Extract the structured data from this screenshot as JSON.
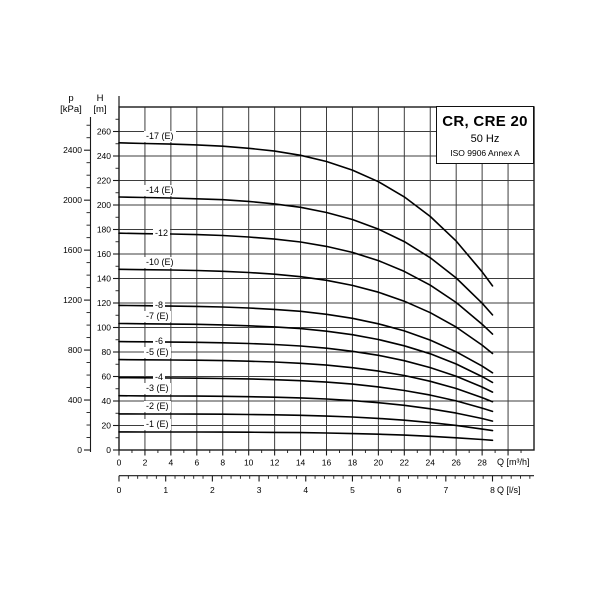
{
  "title_box": {
    "model": "CR, CRE 20",
    "frequency": "50 Hz",
    "standard": "ISO 9906 Annex A"
  },
  "axes": {
    "pressure": {
      "symbol": "p",
      "unit": "[kPa]",
      "tick_labels": [
        0,
        400,
        800,
        1200,
        1600,
        2000,
        2400
      ],
      "minor_step": 100
    },
    "head": {
      "symbol": "H",
      "unit": "[m]",
      "tick_labels": [
        0,
        20,
        40,
        60,
        80,
        100,
        120,
        140,
        160,
        180,
        200,
        220,
        240,
        260
      ],
      "minor_step": 10
    },
    "flow_m3h": {
      "unit_label": "Q [m³/h]",
      "tick_labels": [
        0,
        2,
        4,
        6,
        8,
        10,
        12,
        14,
        16,
        18,
        20,
        22,
        24,
        26,
        28
      ]
    },
    "flow_ls": {
      "unit_label": "Q [l/s]",
      "tick_labels": [
        0,
        1,
        2,
        3,
        4,
        5,
        6,
        7,
        8
      ]
    }
  },
  "chart_data": {
    "type": "line",
    "title": "CR, CRE 20 pump performance curves, 50 Hz, ISO 9906 Annex A",
    "xlabel": "Q [m³/h]",
    "ylabel": "H [m]",
    "xlim": [
      0,
      32
    ],
    "ylim": [
      0,
      280
    ],
    "grid": true,
    "x_values": [
      0,
      2,
      4,
      6,
      8,
      10,
      12,
      14,
      16,
      18,
      20,
      22,
      24,
      26,
      28,
      28.8
    ],
    "series": [
      {
        "name": "-17 (E)",
        "stages": 17,
        "heads": [
          250.8,
          250.2,
          249.7,
          249.1,
          248.0,
          246.3,
          244.0,
          240.6,
          235.5,
          228.5,
          219.0,
          206.6,
          190.6,
          170.5,
          145.5,
          134.0
        ]
      },
      {
        "name": "-14 (E)",
        "stages": 14,
        "heads": [
          206.5,
          206.1,
          205.7,
          205.1,
          204.3,
          202.9,
          200.9,
          198.1,
          193.9,
          188.2,
          180.3,
          170.1,
          156.9,
          140.4,
          119.8,
          110.3
        ]
      },
      {
        "name": "-12",
        "stages": 12,
        "heads": [
          177.0,
          176.6,
          176.3,
          175.8,
          175.1,
          173.9,
          172.2,
          169.8,
          166.2,
          161.3,
          154.6,
          145.8,
          134.5,
          120.4,
          102.7,
          94.6
        ]
      },
      {
        "name": "-10 (E)",
        "stages": 10,
        "heads": [
          147.5,
          147.2,
          146.9,
          146.5,
          145.9,
          144.9,
          143.5,
          141.5,
          138.5,
          134.4,
          128.8,
          121.5,
          112.1,
          100.3,
          85.6,
          78.8
        ]
      },
      {
        "name": "-8",
        "stages": 8,
        "heads": [
          118.0,
          117.8,
          117.5,
          117.2,
          116.7,
          115.9,
          114.8,
          113.2,
          110.8,
          107.5,
          103.0,
          97.2,
          89.7,
          80.2,
          68.5,
          63.0
        ]
      },
      {
        "name": "-7 (E)",
        "stages": 7,
        "heads": [
          103.3,
          103.0,
          102.8,
          102.6,
          102.1,
          101.4,
          100.5,
          99.1,
          97.0,
          94.1,
          90.2,
          85.1,
          78.5,
          70.2,
          59.9,
          55.2
        ]
      },
      {
        "name": "-6",
        "stages": 6,
        "heads": [
          88.5,
          88.3,
          88.1,
          87.9,
          87.5,
          86.9,
          86.1,
          84.9,
          83.1,
          80.6,
          77.3,
          72.9,
          67.3,
          60.2,
          51.4,
          47.3
        ]
      },
      {
        "name": "-5 (E)",
        "stages": 5,
        "heads": [
          73.8,
          73.6,
          73.5,
          73.3,
          73.0,
          72.5,
          71.8,
          70.8,
          69.3,
          67.2,
          64.4,
          60.8,
          56.1,
          50.2,
          42.8,
          39.4
        ]
      },
      {
        "name": "-4",
        "stages": 4,
        "heads": [
          59.0,
          58.9,
          58.8,
          58.6,
          58.4,
          58.0,
          57.4,
          56.6,
          55.4,
          53.8,
          51.5,
          48.6,
          44.8,
          40.1,
          34.2,
          31.5
        ]
      },
      {
        "name": "-3 (E)",
        "stages": 3,
        "heads": [
          44.3,
          44.2,
          44.1,
          44.0,
          43.8,
          43.5,
          43.1,
          42.5,
          41.6,
          40.3,
          38.6,
          36.5,
          33.6,
          30.1,
          25.7,
          23.6
        ]
      },
      {
        "name": "-2 (E)",
        "stages": 2,
        "heads": [
          29.5,
          29.4,
          29.4,
          29.3,
          29.2,
          29.0,
          28.7,
          28.3,
          27.7,
          26.9,
          25.8,
          24.3,
          22.4,
          20.1,
          17.1,
          15.8
        ]
      },
      {
        "name": "-1 (E)",
        "stages": 1,
        "heads": [
          14.8,
          14.7,
          14.7,
          14.7,
          14.6,
          14.5,
          14.4,
          14.2,
          13.9,
          13.4,
          12.9,
          12.2,
          11.2,
          10.0,
          8.6,
          7.9
        ]
      }
    ]
  },
  "colors": {
    "curve": "#000000",
    "grid": "#3d3d3d",
    "frame": "#1a1a1a",
    "background": "#ffffff"
  }
}
